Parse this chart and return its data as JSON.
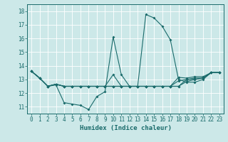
{
  "xlabel": "Humidex (Indice chaleur)",
  "xlim": [
    -0.5,
    23.5
  ],
  "ylim": [
    10.5,
    18.5
  ],
  "yticks": [
    11,
    12,
    13,
    14,
    15,
    16,
    17,
    18
  ],
  "xticks": [
    0,
    1,
    2,
    3,
    4,
    5,
    6,
    7,
    8,
    9,
    10,
    11,
    12,
    13,
    14,
    15,
    16,
    17,
    18,
    19,
    20,
    21,
    22,
    23
  ],
  "bg_color": "#cce8e8",
  "line_color": "#1a6b6b",
  "grid_color": "#b8d8d8",
  "series": [
    [
      13.6,
      13.1,
      12.5,
      12.6,
      11.3,
      11.2,
      11.1,
      10.8,
      11.75,
      12.1,
      16.1,
      13.35,
      12.5,
      12.5,
      17.75,
      17.5,
      16.9,
      15.9,
      13.0,
      12.8,
      12.8,
      13.0,
      13.5,
      13.5
    ],
    [
      13.6,
      13.1,
      12.5,
      12.65,
      12.5,
      12.5,
      12.5,
      12.5,
      12.5,
      12.5,
      13.35,
      12.5,
      12.5,
      12.5,
      12.5,
      12.5,
      12.5,
      12.5,
      12.5,
      13.0,
      13.0,
      13.1,
      13.5,
      13.5
    ],
    [
      13.6,
      13.1,
      12.5,
      12.65,
      12.5,
      12.5,
      12.5,
      12.5,
      12.5,
      12.5,
      12.5,
      12.5,
      12.5,
      12.5,
      12.5,
      12.5,
      12.5,
      12.5,
      12.5,
      12.85,
      13.0,
      13.1,
      13.5,
      13.5
    ],
    [
      13.6,
      13.1,
      12.5,
      12.65,
      12.5,
      12.5,
      12.5,
      12.5,
      12.5,
      12.5,
      12.5,
      12.5,
      12.5,
      12.5,
      12.5,
      12.5,
      12.5,
      12.5,
      12.9,
      13.0,
      13.1,
      13.1,
      13.5,
      13.5
    ],
    [
      13.6,
      13.1,
      12.5,
      12.65,
      12.5,
      12.5,
      12.5,
      12.5,
      12.5,
      12.5,
      12.5,
      12.5,
      12.5,
      12.5,
      12.5,
      12.5,
      12.5,
      12.5,
      13.15,
      13.1,
      13.2,
      13.2,
      13.5,
      13.5
    ]
  ]
}
